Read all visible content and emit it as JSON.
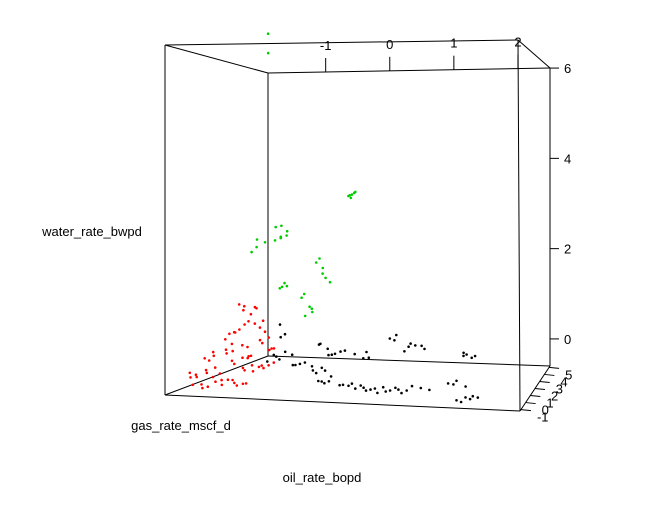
{
  "chart_data": {
    "type": "scatter3d",
    "title": "",
    "xlabel": "oil_rate_bopd",
    "ylabel": "gas_rate_mscf_d",
    "zlabel": "water_rate_bwpd",
    "x_ticks": [
      "-1",
      "0",
      "1",
      "2"
    ],
    "y_ticks": [
      "-1",
      "0",
      "1",
      "2",
      "3",
      "4",
      "5"
    ],
    "z_ticks": [
      "0",
      "2",
      "4",
      "6"
    ],
    "xlim": [
      -1.9,
      2.5
    ],
    "ylim": [
      -1.2,
      5.2
    ],
    "zlim": [
      -0.6,
      6.6
    ],
    "colors": {
      "black": "#000000",
      "red": "#ff0000",
      "green": "#00cc00"
    },
    "series": [
      {
        "name": "black",
        "color": "#000000",
        "points": [
          [
            1.6,
            1.1,
            0.2
          ],
          [
            1.65,
            1.0,
            0.25
          ],
          [
            1.7,
            1.2,
            0.15
          ],
          [
            1.62,
            0.9,
            0.3
          ],
          [
            1.75,
            1.15,
            0.2
          ],
          [
            1.55,
            0.2,
            -0.3
          ],
          [
            1.6,
            0.1,
            -0.2
          ],
          [
            1.7,
            0.3,
            -0.35
          ],
          [
            1.5,
            0.0,
            -0.25
          ],
          [
            1.8,
            -0.9,
            -0.4
          ],
          [
            1.85,
            -0.8,
            -0.45
          ],
          [
            1.9,
            -1.0,
            -0.35
          ],
          [
            1.75,
            -0.95,
            -0.5
          ],
          [
            1.95,
            -0.85,
            -0.4
          ],
          [
            1.7,
            -1.05,
            -0.45
          ],
          [
            0.9,
            0.8,
            0.4
          ],
          [
            1.0,
            0.7,
            0.45
          ],
          [
            1.1,
            0.9,
            0.35
          ],
          [
            0.95,
            0.6,
            0.5
          ],
          [
            1.05,
            1.0,
            0.4
          ],
          [
            0.85,
            0.75,
            0.3
          ],
          [
            1.2,
            -0.5,
            -0.3
          ],
          [
            1.3,
            -0.4,
            -0.35
          ],
          [
            1.1,
            -0.6,
            -0.25
          ],
          [
            0.7,
            -0.3,
            -0.35
          ],
          [
            0.8,
            -0.4,
            -0.4
          ],
          [
            0.9,
            -0.35,
            -0.38
          ],
          [
            0.75,
            -0.45,
            -0.42
          ],
          [
            0.85,
            -0.25,
            -0.36
          ],
          [
            0.65,
            -0.5,
            -0.45
          ],
          [
            1.0,
            -0.3,
            -0.4
          ],
          [
            0.6,
            -0.35,
            -0.38
          ],
          [
            0.95,
            -0.45,
            -0.44
          ],
          [
            0.55,
            -0.4,
            -0.4
          ],
          [
            0.3,
            -0.3,
            -0.3
          ],
          [
            0.4,
            -0.2,
            -0.35
          ],
          [
            0.2,
            -0.4,
            -0.32
          ],
          [
            0.35,
            -0.35,
            -0.4
          ],
          [
            0.45,
            -0.3,
            -0.38
          ],
          [
            0.25,
            -0.25,
            -0.36
          ],
          [
            0.15,
            -0.35,
            -0.34
          ],
          [
            0.5,
            -0.45,
            -0.42
          ],
          [
            0.2,
            0.7,
            0.2
          ],
          [
            0.3,
            0.8,
            0.1
          ],
          [
            0.4,
            0.6,
            0.15
          ],
          [
            0.35,
            0.75,
            0.25
          ],
          [
            0.1,
            0.5,
            0.3
          ],
          [
            -0.1,
            0.4,
            0.2
          ],
          [
            0.0,
            0.3,
            0.25
          ],
          [
            0.05,
            0.45,
            0.28
          ],
          [
            -0.05,
            0.35,
            0.22
          ],
          [
            -0.1,
            0.1,
            -0.1
          ],
          [
            -0.2,
            0.0,
            -0.15
          ],
          [
            0.0,
            -0.05,
            -0.2
          ],
          [
            -0.15,
            0.15,
            -0.05
          ],
          [
            -0.25,
            0.05,
            -0.1
          ],
          [
            -0.3,
            0.3,
            -0.05
          ],
          [
            -0.45,
            0.25,
            0.0
          ],
          [
            -0.5,
            0.2,
            -0.02
          ],
          [
            -0.4,
            0.35,
            0.02
          ],
          [
            -0.55,
            0.3,
            -0.04
          ],
          [
            -0.7,
            0.6,
            0.2
          ],
          [
            -0.8,
            0.5,
            0.1
          ],
          [
            -0.9,
            0.4,
            0.0
          ],
          [
            -0.6,
            0.55,
            0.15
          ],
          [
            -0.75,
            0.45,
            0.05
          ],
          [
            -0.85,
            0.6,
            0.12
          ],
          [
            -0.1,
            -0.2,
            -0.3
          ],
          [
            -0.05,
            -0.3,
            -0.32
          ],
          [
            0.0,
            -0.25,
            -0.28
          ],
          [
            -0.15,
            -0.15,
            -0.3
          ],
          [
            0.6,
            1.2,
            0.5
          ],
          [
            0.7,
            1.1,
            0.6
          ],
          [
            0.65,
            1.3,
            0.45
          ],
          [
            -0.35,
            1.2,
            0.3
          ],
          [
            -0.3,
            1.0,
            0.35
          ],
          [
            -0.25,
            1.3,
            0.2
          ],
          [
            -1.05,
            2.5,
            0.3
          ],
          [
            -1.15,
            2.7,
            0.2
          ],
          [
            -1.2,
            2.9,
            0.45
          ]
        ]
      },
      {
        "name": "red",
        "color": "#ff0000",
        "points": [
          [
            -1.55,
            2.6,
            0.7
          ],
          [
            -1.6,
            2.4,
            0.9
          ],
          [
            -1.5,
            2.2,
            0.6
          ],
          [
            -1.7,
            2.8,
            0.75
          ],
          [
            -1.45,
            2.5,
            0.85
          ],
          [
            -1.65,
            2.3,
            0.95
          ],
          [
            -1.4,
            2.7,
            0.55
          ],
          [
            -1.58,
            3.0,
            0.8
          ],
          [
            -1.6,
            1.8,
            0.4
          ],
          [
            -1.5,
            1.6,
            0.5
          ],
          [
            -1.7,
            1.9,
            0.35
          ],
          [
            -1.45,
            1.7,
            0.6
          ],
          [
            -1.55,
            1.5,
            0.45
          ],
          [
            -1.65,
            1.4,
            0.3
          ],
          [
            -1.4,
            1.3,
            0.2
          ],
          [
            -1.5,
            1.1,
            0.25
          ],
          [
            -1.6,
            1.2,
            0.1
          ],
          [
            -1.35,
            1.4,
            0.15
          ],
          [
            -1.55,
            1.0,
            0.05
          ],
          [
            -1.45,
            0.9,
            0.12
          ],
          [
            -1.3,
            0.8,
            0.0
          ],
          [
            -1.4,
            0.6,
            -0.05
          ],
          [
            -1.2,
            0.7,
            0.05
          ],
          [
            -1.35,
            0.5,
            -0.1
          ],
          [
            -1.25,
            0.9,
            -0.02
          ],
          [
            -1.15,
            0.6,
            0.08
          ],
          [
            -1.1,
            0.4,
            -0.1
          ],
          [
            -1.2,
            0.3,
            -0.15
          ],
          [
            -1.0,
            0.35,
            -0.12
          ],
          [
            -1.05,
            0.2,
            -0.2
          ],
          [
            -1.15,
            0.15,
            -0.18
          ],
          [
            -1.6,
            0.5,
            -0.2
          ],
          [
            -1.7,
            0.4,
            -0.25
          ],
          [
            -1.5,
            0.3,
            -0.3
          ],
          [
            -1.65,
            0.2,
            -0.28
          ],
          [
            -1.55,
            0.1,
            -0.35
          ],
          [
            -1.7,
            0.9,
            0.0
          ],
          [
            -1.75,
            1.1,
            0.05
          ],
          [
            -1.8,
            0.8,
            -0.05
          ],
          [
            -1.72,
            0.7,
            -0.08
          ],
          [
            -1.3,
            -0.2,
            -0.35
          ],
          [
            -1.2,
            -0.3,
            -0.4
          ],
          [
            -1.4,
            -0.1,
            -0.38
          ],
          [
            -1.1,
            -0.25,
            -0.42
          ],
          [
            -1.35,
            -0.35,
            -0.45
          ],
          [
            -1.25,
            -0.15,
            -0.36
          ],
          [
            -1.15,
            -0.4,
            -0.44
          ],
          [
            -1.05,
            -0.3,
            -0.4
          ],
          [
            -1.45,
            -0.25,
            -0.4
          ],
          [
            -0.9,
            0.5,
            -0.1
          ],
          [
            -0.95,
            0.4,
            -0.15
          ],
          [
            -0.85,
            0.6,
            -0.05
          ],
          [
            -1.0,
            0.55,
            -0.12
          ],
          [
            -1.75,
            0.0,
            -0.3
          ],
          [
            -1.8,
            -0.1,
            -0.35
          ],
          [
            -1.7,
            -0.2,
            -0.32
          ],
          [
            -1.85,
            0.1,
            -0.28
          ],
          [
            -1.6,
            -0.4,
            -0.45
          ],
          [
            -1.5,
            -0.5,
            -0.48
          ],
          [
            -1.7,
            -0.45,
            -0.46
          ],
          [
            -1.55,
            -0.6,
            -0.5
          ],
          [
            -1.3,
            2.0,
            0.5
          ],
          [
            -1.35,
            1.9,
            0.6
          ],
          [
            -1.25,
            2.1,
            0.4
          ],
          [
            -1.2,
            1.5,
            0.3
          ],
          [
            -1.1,
            1.6,
            0.35
          ],
          [
            -1.15,
            1.4,
            0.25
          ],
          [
            -0.95,
            1.0,
            0.2
          ],
          [
            -1.0,
            1.1,
            0.15
          ],
          [
            -0.9,
            0.9,
            0.22
          ]
        ]
      },
      {
        "name": "green",
        "color": "#00cc00",
        "points": [
          [
            0.3,
            -0.5,
            3.9
          ],
          [
            0.35,
            -0.45,
            3.95
          ],
          [
            0.32,
            -0.55,
            3.85
          ],
          [
            0.37,
            -0.5,
            3.98
          ],
          [
            0.28,
            -0.48,
            3.88
          ],
          [
            0.33,
            -0.52,
            3.92
          ],
          [
            -0.1,
            -0.1,
            2.2
          ],
          [
            -0.05,
            -0.2,
            2.0
          ],
          [
            -0.15,
            -0.05,
            2.4
          ],
          [
            0.0,
            -0.15,
            1.9
          ],
          [
            -0.2,
            0.0,
            2.3
          ],
          [
            -0.08,
            -0.25,
            2.1
          ],
          [
            -0.3,
            0.1,
            1.3
          ],
          [
            -0.25,
            0.0,
            1.2
          ],
          [
            -0.35,
            0.05,
            1.1
          ],
          [
            -0.28,
            0.15,
            1.25
          ],
          [
            -1.1,
            2.5,
            2.7
          ],
          [
            -1.0,
            2.4,
            2.6
          ],
          [
            -1.05,
            2.2,
            2.5
          ],
          [
            -1.15,
            2.3,
            2.4
          ],
          [
            -1.2,
            2.6,
            2.65
          ],
          [
            -0.95,
            2.1,
            2.55
          ],
          [
            -1.08,
            2.35,
            2.45
          ],
          [
            -0.9,
            1.5,
            1.5
          ],
          [
            -0.85,
            1.4,
            1.6
          ],
          [
            -0.95,
            1.6,
            1.45
          ],
          [
            -0.8,
            1.3,
            1.55
          ],
          [
            -1.6,
            3.2,
            2.1
          ],
          [
            -1.55,
            3.0,
            2.3
          ],
          [
            -1.65,
            3.1,
            2.0
          ],
          [
            -1.5,
            3.3,
            2.2
          ],
          [
            -1.8,
            4.8,
            6.6
          ],
          [
            -1.75,
            4.6,
            6.2
          ],
          [
            -0.5,
            0.7,
            1.4
          ],
          [
            -0.45,
            0.6,
            1.5
          ]
        ]
      }
    ]
  }
}
